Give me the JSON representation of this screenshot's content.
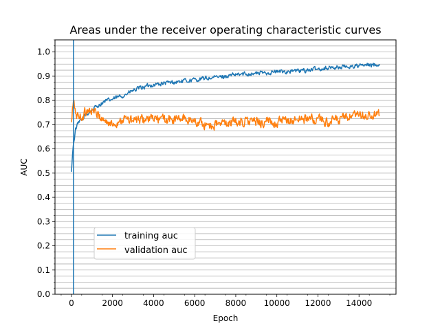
{
  "chart_data": {
    "type": "line",
    "title": "Areas under the receiver operating characteristic curves",
    "xlabel": "Epoch",
    "ylabel": "AUC",
    "xlim": [
      -800,
      15800
    ],
    "ylim": [
      0.0,
      1.05
    ],
    "xticks": [
      0,
      2000,
      4000,
      6000,
      8000,
      10000,
      12000,
      14000
    ],
    "yticks": [
      0.0,
      0.1,
      0.2,
      0.3,
      0.4,
      0.5,
      0.6,
      0.7,
      0.8,
      0.9,
      1.0
    ],
    "xtick_labels": [
      "0",
      "2000",
      "4000",
      "6000",
      "8000",
      "10000",
      "12000",
      "14000"
    ],
    "ytick_labels": [
      "0.0",
      "0.1",
      "0.2",
      "0.3",
      "0.4",
      "0.5",
      "0.6",
      "0.7",
      "0.8",
      "0.9",
      "1.0"
    ],
    "minor_grid_step": 0.025,
    "grid": "horizontal minor",
    "vertical_marker_x": 100,
    "legend_position": "lower-left",
    "series": [
      {
        "name": "training auc",
        "color": "#1f77b4",
        "x": [
          0,
          50,
          100,
          200,
          300,
          500,
          700,
          1000,
          1300,
          1600,
          2000,
          2500,
          3000,
          3500,
          4000,
          4500,
          5000,
          5500,
          6000,
          6500,
          7000,
          7500,
          8000,
          8500,
          9000,
          9500,
          10000,
          10500,
          11000,
          11500,
          12000,
          12500,
          13000,
          13500,
          14000,
          14500,
          15000
        ],
        "values": [
          0.5,
          0.58,
          0.62,
          0.68,
          0.7,
          0.72,
          0.74,
          0.76,
          0.78,
          0.795,
          0.805,
          0.82,
          0.84,
          0.855,
          0.865,
          0.87,
          0.875,
          0.88,
          0.885,
          0.89,
          0.895,
          0.9,
          0.905,
          0.91,
          0.912,
          0.915,
          0.918,
          0.92,
          0.922,
          0.925,
          0.93,
          0.935,
          0.937,
          0.94,
          0.943,
          0.945,
          0.95
        ],
        "noise": 0.008
      },
      {
        "name": "validation auc",
        "color": "#ff7f0e",
        "x": [
          0,
          50,
          100,
          150,
          250,
          400,
          600,
          800,
          1000,
          1300,
          1600,
          1900,
          2200,
          2500,
          3000,
          3500,
          4000,
          4500,
          5000,
          5500,
          6000,
          6500,
          7000,
          7500,
          8000,
          8500,
          9000,
          9500,
          10000,
          10500,
          11000,
          11500,
          12000,
          12500,
          13000,
          13500,
          14000,
          14500,
          15000
        ],
        "values": [
          0.7,
          0.76,
          0.79,
          0.77,
          0.74,
          0.73,
          0.74,
          0.765,
          0.76,
          0.74,
          0.72,
          0.7,
          0.71,
          0.725,
          0.715,
          0.72,
          0.725,
          0.72,
          0.72,
          0.725,
          0.715,
          0.7,
          0.7,
          0.705,
          0.71,
          0.715,
          0.71,
          0.71,
          0.71,
          0.715,
          0.72,
          0.725,
          0.72,
          0.71,
          0.72,
          0.73,
          0.735,
          0.735,
          0.74
        ],
        "noise": 0.018
      }
    ]
  }
}
